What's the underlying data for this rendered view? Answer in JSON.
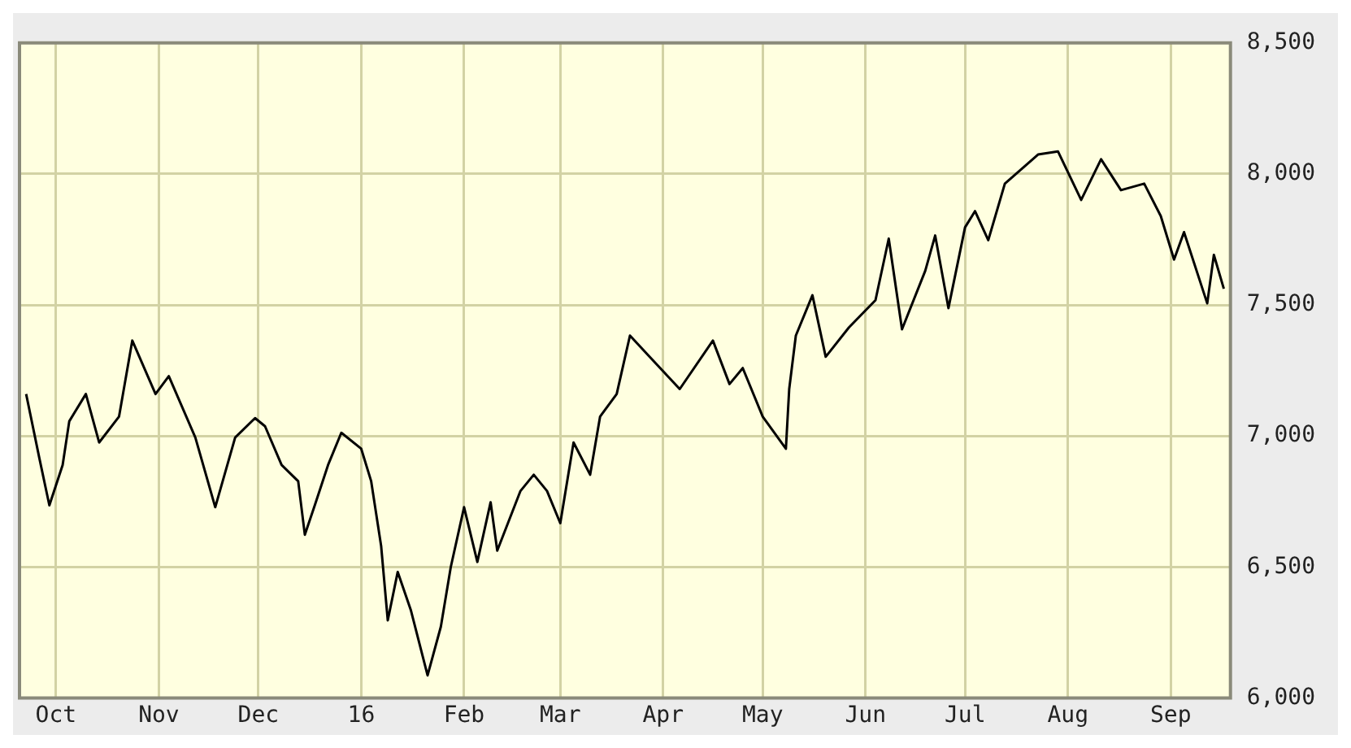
{
  "chart_data": {
    "type": "line",
    "x": [
      "2015-09-22",
      "2015-09-26",
      "2015-09-29",
      "2015-10-03",
      "2015-10-05",
      "2015-10-10",
      "2015-10-14",
      "2015-10-20",
      "2015-10-24",
      "2015-10-31",
      "2015-11-04",
      "2015-11-12",
      "2015-11-18",
      "2015-11-24",
      "2015-11-30",
      "2015-12-03",
      "2015-12-08",
      "2015-12-13",
      "2015-12-15",
      "2015-12-18",
      "2015-12-22",
      "2015-12-26",
      "2016-01-01",
      "2016-01-04",
      "2016-01-07",
      "2016-01-09",
      "2016-01-12",
      "2016-01-16",
      "2016-01-21",
      "2016-01-25",
      "2016-01-28",
      "2016-02-01",
      "2016-02-05",
      "2016-02-09",
      "2016-02-11",
      "2016-02-18",
      "2016-02-22",
      "2016-02-26",
      "2016-03-01",
      "2016-03-05",
      "2016-03-10",
      "2016-03-13",
      "2016-03-18",
      "2016-03-22",
      "2016-03-27",
      "2016-04-06",
      "2016-04-16",
      "2016-04-21",
      "2016-04-25",
      "2016-05-01",
      "2016-05-08",
      "2016-05-09",
      "2016-05-11",
      "2016-05-16",
      "2016-05-20",
      "2016-05-27",
      "2016-06-04",
      "2016-06-08",
      "2016-06-12",
      "2016-06-19",
      "2016-06-22",
      "2016-06-26",
      "2016-07-01",
      "2016-07-04",
      "2016-07-08",
      "2016-07-13",
      "2016-07-23",
      "2016-07-29",
      "2016-08-05",
      "2016-08-11",
      "2016-08-17",
      "2016-08-24",
      "2016-08-29",
      "2016-09-02",
      "2016-09-05",
      "2016-09-12",
      "2016-09-14",
      "2016-09-17"
    ],
    "series": [
      {
        "color": "#000000",
        "values": [
          7160,
          6914,
          6735,
          6889,
          7056,
          7160,
          6975,
          7074,
          7364,
          7160,
          7228,
          6994,
          6728,
          6994,
          7068,
          7037,
          6889,
          6827,
          6623,
          6735,
          6889,
          7012,
          6951,
          6827,
          6580,
          6296,
          6481,
          6333,
          6086,
          6272,
          6500,
          6728,
          6519,
          6747,
          6562,
          6790,
          6852,
          6790,
          6667,
          6975,
          6852,
          7074,
          7160,
          7383,
          7315,
          7179,
          7364,
          7198,
          7259,
          7074,
          6951,
          7179,
          7383,
          7537,
          7302,
          7414,
          7518,
          7753,
          7407,
          7630,
          7765,
          7488,
          7796,
          7858,
          7747,
          7963,
          8074,
          8086,
          7901,
          8056,
          7938,
          7963,
          7839,
          7673,
          7778,
          7506,
          7691,
          7562
        ]
      }
    ],
    "xlim": [
      "2015-09-20",
      "2016-09-19"
    ],
    "xticks": [
      {
        "value": "2015-10-01",
        "label": "Oct"
      },
      {
        "value": "2015-11-01",
        "label": "Nov"
      },
      {
        "value": "2015-12-01",
        "label": "Dec"
      },
      {
        "value": "2016-01-01",
        "label": "16"
      },
      {
        "value": "2016-02-01",
        "label": "Feb"
      },
      {
        "value": "2016-03-01",
        "label": "Mar"
      },
      {
        "value": "2016-04-01",
        "label": "Apr"
      },
      {
        "value": "2016-05-01",
        "label": "May"
      },
      {
        "value": "2016-06-01",
        "label": "Jun"
      },
      {
        "value": "2016-07-01",
        "label": "Jul"
      },
      {
        "value": "2016-08-01",
        "label": "Aug"
      },
      {
        "value": "2016-09-01",
        "label": "Sep"
      }
    ],
    "ylim": [
      6000,
      8500
    ],
    "yticks": [
      {
        "value": 6000,
        "label": "6,000"
      },
      {
        "value": 6500,
        "label": "6,500"
      },
      {
        "value": 7000,
        "label": "7,000"
      },
      {
        "value": 7500,
        "label": "7,500"
      },
      {
        "value": 8000,
        "label": "8,000"
      },
      {
        "value": 8500,
        "label": "8,500"
      }
    ],
    "grid": true,
    "legend": false,
    "marker": "none",
    "line_style": "solid"
  }
}
